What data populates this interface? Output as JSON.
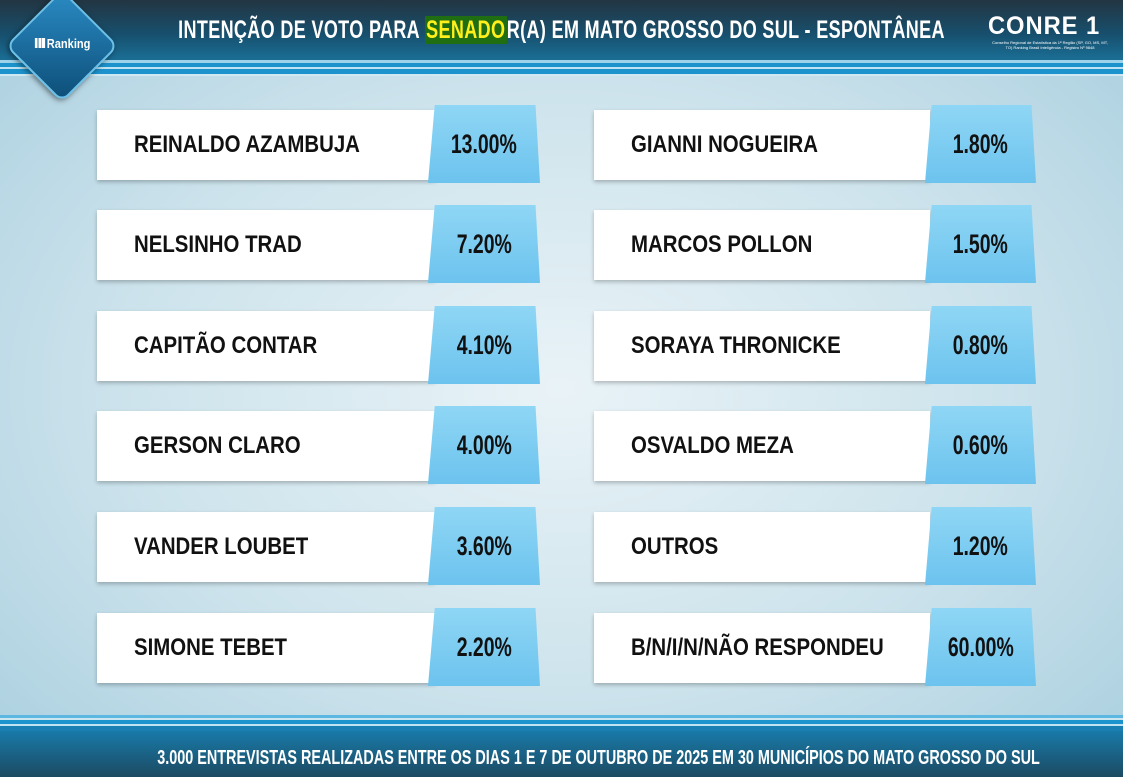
{
  "header": {
    "title_pre": "INTENÇÃO DE VOTO PARA ",
    "title_highlight": "SENADO",
    "title_post": "R(A) EM MATO GROSSO DO SUL - ESPONTÂNEA"
  },
  "logos": {
    "ranking": "Ranking",
    "conre": "CONRE 1",
    "conre_sub": "Conselho Regional de Estatística da 1ª Região (SP, GO, MS, MT, TO) Ranking Brasil Inteligência - Registro Nº 9848"
  },
  "colors": {
    "highlight_bg": "#1f6e12",
    "highlight_text": "#ffef1a",
    "tab_blue": "#7ccdf2",
    "header_dark": "#233542"
  },
  "candidates": [
    {
      "name": "REINALDO AZAMBUJA",
      "value": "13.00%"
    },
    {
      "name": "NELSINHO TRAD",
      "value": "7.20%"
    },
    {
      "name": "CAPITÃO CONTAR",
      "value": "4.10%"
    },
    {
      "name": "GERSON CLARO",
      "value": "4.00%"
    },
    {
      "name": "VANDER LOUBET",
      "value": "3.60%"
    },
    {
      "name": "SIMONE TEBET",
      "value": "2.20%"
    },
    {
      "name": "GIANNI NOGUEIRA",
      "value": "1.80%"
    },
    {
      "name": "MARCOS POLLON",
      "value": "1.50%"
    },
    {
      "name": "SORAYA THRONICKE",
      "value": "0.80%"
    },
    {
      "name": "OSVALDO MEZA",
      "value": "0.60%"
    },
    {
      "name": "OUTROS",
      "value": "1.20%"
    },
    {
      "name": "B/N/I/N/NÃO RESPONDEU",
      "value": "60.00%"
    }
  ],
  "footer": {
    "text": "3.000 ENTREVISTAS REALIZADAS ENTRE OS DIAS 1 E 7 DE OUTUBRO DE 2025 EM 30 MUNICÍPIOS DO MATO GROSSO DO SUL"
  }
}
